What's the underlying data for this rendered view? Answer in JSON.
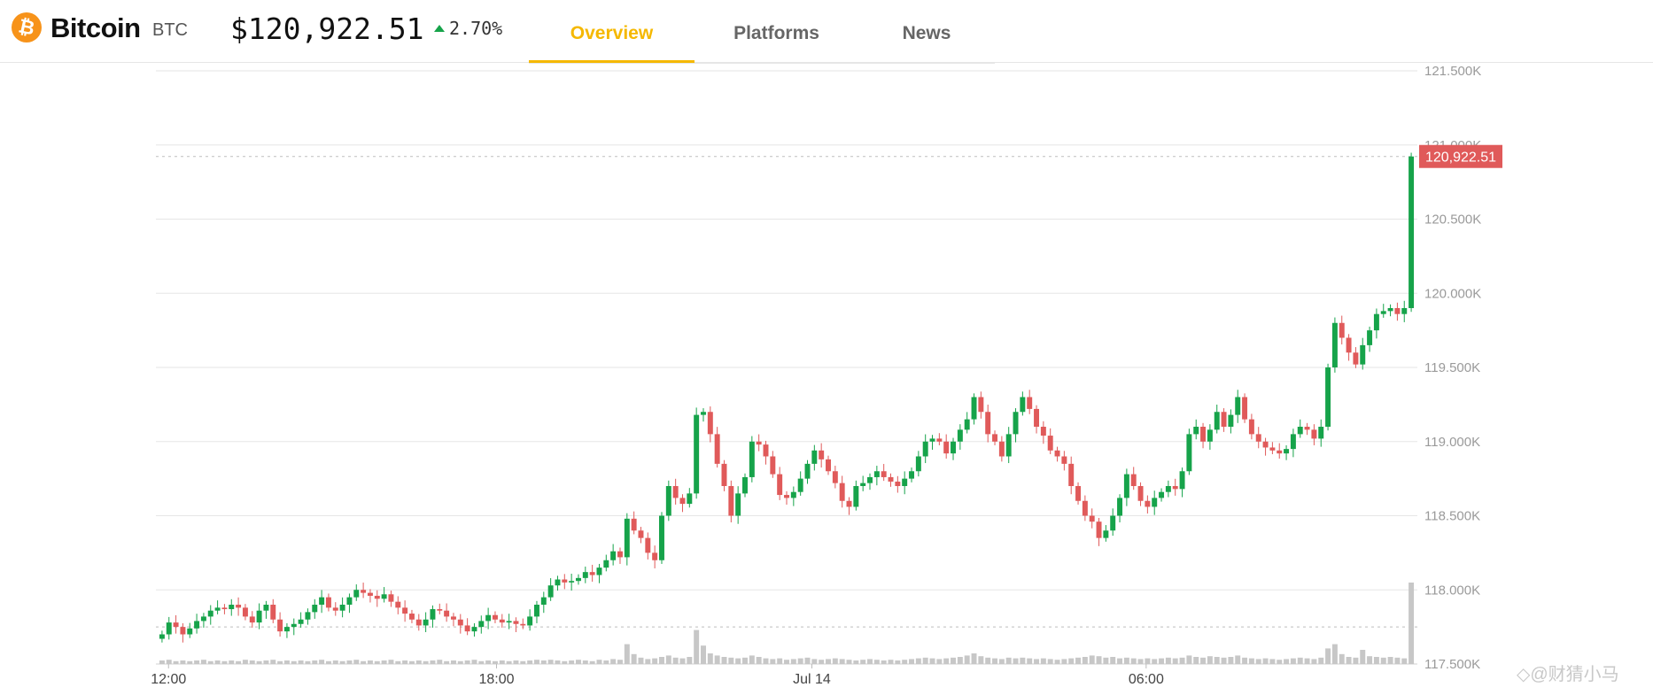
{
  "header": {
    "coin_name": "Bitcoin",
    "ticker": "BTC",
    "price": "$120,922.51",
    "change": "2.70%",
    "logo_symbol": "₿",
    "logo_color": "#f7931a"
  },
  "tabs": [
    {
      "label": "Overview",
      "active": true
    },
    {
      "label": "Platforms",
      "active": false
    },
    {
      "label": "News",
      "active": false
    }
  ],
  "watermark": "◇@财猜小马",
  "chart_data": {
    "type": "candlestick",
    "y_ticks": [
      "117.500K",
      "118.000K",
      "118.500K",
      "119.000K",
      "119.500K",
      "120.000K",
      "120.500K",
      "121.000K",
      "121.500K"
    ],
    "ylim": [
      117500,
      121500
    ],
    "x_ticks": [
      "12:00",
      "18:00",
      "Jul 14",
      "06:00"
    ],
    "last_price_label": "120,922.51",
    "last_price": 120922.51,
    "reference_price": 117750,
    "grid": true,
    "colors": {
      "up": "#16a34a",
      "down": "#e05a5a",
      "volume": "#c7c7c7",
      "grid": "#e6e6e6"
    },
    "closes": [
      117700,
      117780,
      117750,
      117700,
      117740,
      117790,
      117820,
      117860,
      117880,
      117870,
      117900,
      117880,
      117820,
      117780,
      117860,
      117900,
      117800,
      117720,
      117750,
      117770,
      117800,
      117850,
      117900,
      117950,
      117880,
      117860,
      117900,
      117950,
      118000,
      117980,
      117960,
      117940,
      117970,
      117920,
      117880,
      117840,
      117800,
      117760,
      117800,
      117870,
      117860,
      117820,
      117800,
      117760,
      117720,
      117750,
      117790,
      117830,
      117800,
      117780,
      117790,
      117770,
      117760,
      117820,
      117900,
      117950,
      118030,
      118070,
      118050,
      118060,
      118080,
      118120,
      118100,
      118150,
      118200,
      118260,
      118220,
      118480,
      118400,
      118350,
      118250,
      118200,
      118500,
      118700,
      118620,
      118580,
      118650,
      119180,
      119200,
      119050,
      118850,
      118700,
      118500,
      118650,
      118760,
      119000,
      118980,
      118900,
      118780,
      118640,
      118620,
      118660,
      118750,
      118850,
      118940,
      118880,
      118800,
      118720,
      118600,
      118560,
      118700,
      118720,
      118760,
      118800,
      118760,
      118730,
      118700,
      118750,
      118800,
      118900,
      119000,
      119020,
      119000,
      118920,
      119000,
      119080,
      119150,
      119300,
      119200,
      119050,
      119000,
      118900,
      119050,
      119200,
      119300,
      119220,
      119100,
      119040,
      118940,
      118900,
      118850,
      118700,
      118600,
      118500,
      118460,
      118350,
      118400,
      118500,
      118620,
      118780,
      118700,
      118600,
      118560,
      118620,
      118660,
      118700,
      118680,
      118800,
      119050,
      119100,
      119000,
      119080,
      119200,
      119100,
      119180,
      119300,
      119150,
      119050,
      119000,
      118960,
      118940,
      118920,
      118950,
      119050,
      119100,
      119080,
      119020,
      119100,
      119500,
      119800,
      119700,
      119600,
      119520,
      119650,
      119750,
      119860,
      119880,
      119900,
      119860,
      119900,
      120922.51
    ],
    "volumes": [
      5,
      6,
      4,
      5,
      4,
      5,
      6,
      4,
      5,
      4,
      5,
      4,
      6,
      5,
      4,
      5,
      6,
      4,
      5,
      4,
      5,
      4,
      5,
      6,
      4,
      5,
      4,
      5,
      6,
      4,
      5,
      4,
      5,
      6,
      4,
      5,
      4,
      5,
      4,
      5,
      6,
      4,
      5,
      4,
      5,
      6,
      4,
      5,
      4,
      5,
      4,
      5,
      4,
      5,
      6,
      5,
      6,
      5,
      4,
      5,
      6,
      5,
      4,
      6,
      5,
      7,
      6,
      28,
      14,
      9,
      7,
      8,
      10,
      12,
      9,
      8,
      10,
      48,
      26,
      15,
      12,
      10,
      9,
      8,
      9,
      12,
      10,
      8,
      7,
      8,
      6,
      7,
      8,
      9,
      7,
      6,
      7,
      8,
      7,
      6,
      5,
      6,
      7,
      6,
      5,
      6,
      5,
      6,
      7,
      8,
      9,
      8,
      7,
      8,
      9,
      10,
      12,
      15,
      11,
      9,
      8,
      7,
      9,
      8,
      9,
      8,
      7,
      8,
      7,
      6,
      7,
      8,
      9,
      10,
      12,
      11,
      9,
      10,
      8,
      9,
      8,
      7,
      8,
      7,
      8,
      9,
      8,
      9,
      12,
      10,
      9,
      11,
      10,
      9,
      10,
      12,
      9,
      8,
      7,
      8,
      7,
      6,
      7,
      8,
      9,
      8,
      7,
      9,
      22,
      28,
      14,
      10,
      9,
      20,
      11,
      10,
      9,
      10,
      9,
      8,
      115
    ]
  }
}
